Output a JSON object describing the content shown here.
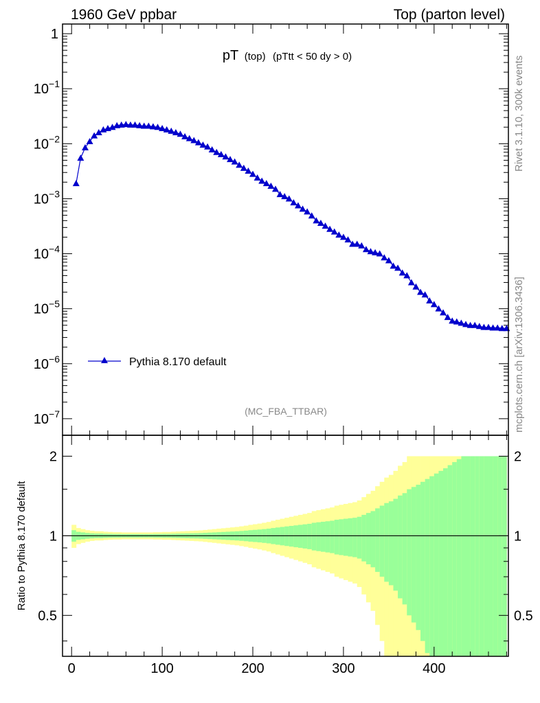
{
  "header": {
    "left": "1960 GeV ppbar",
    "right": "Top (parton level)"
  },
  "side_labels": {
    "rivet": "Rivet 3.1.10,  300k events",
    "mcplots": "mcplots.cern.ch [arXiv:1306.3436]"
  },
  "chart_data": [
    {
      "type": "line",
      "title_main": "pT",
      "title_sub": "(top)",
      "title_cut": "(pTtt < 50 dy > 0)",
      "watermark": "(MC_FBA_TTBAR)",
      "y_scale": "log",
      "ylim": [
        5e-08,
        1.5
      ],
      "xlim": [
        -10,
        482
      ],
      "y_ticks": [
        {
          "v": 1,
          "base": "1",
          "exp": ""
        },
        {
          "v": 0.1,
          "base": "10",
          "exp": "−1"
        },
        {
          "v": 0.01,
          "base": "10",
          "exp": "−2"
        },
        {
          "v": 0.001,
          "base": "10",
          "exp": "−3"
        },
        {
          "v": 0.0001,
          "base": "10",
          "exp": "−4"
        },
        {
          "v": 1e-05,
          "base": "10",
          "exp": "−5"
        },
        {
          "v": 1e-06,
          "base": "10",
          "exp": "−6"
        },
        {
          "v": 1e-07,
          "base": "10",
          "exp": "−7"
        }
      ],
      "legend": "Pythia 8.170 default",
      "legend_position": "lower-left",
      "color": "#0000cc",
      "series": [
        {
          "name": "Pythia 8.170 default",
          "x": [
            5,
            10,
            15,
            20,
            25,
            30,
            35,
            40,
            45,
            50,
            55,
            60,
            65,
            70,
            75,
            80,
            85,
            90,
            95,
            100,
            105,
            110,
            115,
            120,
            125,
            130,
            135,
            140,
            145,
            150,
            155,
            160,
            165,
            170,
            175,
            180,
            185,
            190,
            195,
            200,
            205,
            210,
            215,
            220,
            225,
            230,
            235,
            240,
            245,
            250,
            255,
            260,
            265,
            270,
            275,
            280,
            285,
            290,
            295,
            300,
            305,
            310,
            315,
            320,
            325,
            330,
            335,
            340,
            345,
            350,
            355,
            360,
            365,
            370,
            375,
            380,
            385,
            390,
            395,
            400,
            405,
            410,
            415,
            420,
            425,
            430,
            435,
            440,
            445,
            450,
            455,
            460,
            465,
            470,
            475,
            480
          ],
          "y": [
            0.0019,
            0.0055,
            0.0085,
            0.011,
            0.014,
            0.016,
            0.018,
            0.019,
            0.02,
            0.0215,
            0.022,
            0.0225,
            0.022,
            0.022,
            0.0215,
            0.021,
            0.021,
            0.0205,
            0.02,
            0.019,
            0.018,
            0.017,
            0.016,
            0.015,
            0.0135,
            0.0125,
            0.0115,
            0.0105,
            0.0095,
            0.0088,
            0.0078,
            0.007,
            0.0064,
            0.0058,
            0.0052,
            0.0047,
            0.0041,
            0.0036,
            0.0032,
            0.0028,
            0.0024,
            0.0021,
            0.0019,
            0.0017,
            0.0015,
            0.0012,
            0.0011,
            0.001,
            0.00085,
            0.00075,
            0.00065,
            0.00058,
            0.00049,
            0.0004,
            0.00036,
            0.00032,
            0.00028,
            0.00025,
            0.00022,
            0.0002,
            0.00018,
            0.00015,
            0.00015,
            0.00014,
            0.00012,
            0.00011,
            0.000105,
            0.0001,
            8.5e-05,
            7.5e-05,
            6e-05,
            5.5e-05,
            4.5e-05,
            4e-05,
            3e-05,
            2.5e-05,
            2e-05,
            1.8e-05,
            1.4e-05,
            1.2e-05,
            1e-05,
            8.5e-06,
            7e-06,
            6e-06,
            5.8e-06,
            5.5e-06,
            5.2e-06,
            5e-06,
            5e-06,
            4.8e-06,
            4.6e-06,
            4.6e-06,
            4.5e-06,
            4.5e-06,
            4.4e-06,
            4.4e-06
          ],
          "yerr_frac": [
            0.002,
            0.004,
            0.004,
            0.004,
            0.004,
            0.004,
            0.004,
            0.004,
            0.004,
            0.004,
            0.004,
            0.004,
            0.004,
            0.004,
            0.004,
            0.004,
            0.004,
            0.004,
            0.004,
            0.004,
            0.004,
            0.004,
            0.004,
            0.004,
            0.004,
            0.004,
            0.004,
            0.004,
            0.004,
            0.004,
            0.004,
            0.004,
            0.004,
            0.004,
            0.004,
            0.004,
            0.004,
            0.004,
            0.004,
            0.004,
            0.004,
            0.004,
            0.004,
            0.004,
            0.004,
            0.004,
            0.004,
            0.004,
            0.004,
            0.004,
            0.004,
            0.004,
            0.004,
            0.004,
            0.004,
            0.004,
            0.004,
            0.004,
            0.004,
            0.004,
            0.004,
            0.004,
            0.004,
            0.004,
            0.004,
            0.004,
            0.004,
            0.004,
            0.004,
            0.004,
            0.004,
            0.004,
            0.004,
            0.004,
            0.004,
            0.004,
            0.004,
            0.004,
            0.004,
            0.004,
            0.004,
            0.004,
            0.004,
            0.004,
            0.004,
            0.004,
            0.004,
            0.004,
            0.004,
            0.004,
            0.004,
            0.004,
            0.004,
            0.004,
            0.004,
            0.004
          ]
        }
      ]
    },
    {
      "type": "area",
      "ylabel": "Ratio to Pythia 8.170 default",
      "y_scale": "log",
      "ylim": [
        0.35,
        2.4
      ],
      "xlim": [
        -10,
        482
      ],
      "y_ticks": [
        0.5,
        1,
        2
      ],
      "x_ticks": [
        0,
        100,
        200,
        300,
        400
      ],
      "reference_line": 1,
      "band_colors": {
        "inner": "#99ff99",
        "outer": "#ffff99"
      },
      "bins": [
        0,
        5,
        10,
        15,
        20,
        25,
        30,
        35,
        40,
        45,
        50,
        55,
        60,
        65,
        70,
        75,
        80,
        85,
        90,
        95,
        100,
        105,
        110,
        115,
        120,
        125,
        130,
        135,
        140,
        145,
        150,
        155,
        160,
        165,
        170,
        175,
        180,
        185,
        190,
        195,
        200,
        205,
        210,
        215,
        220,
        225,
        230,
        235,
        240,
        245,
        250,
        255,
        260,
        265,
        270,
        275,
        280,
        285,
        290,
        295,
        300,
        305,
        310,
        315,
        320,
        325,
        330,
        335,
        340,
        345,
        350,
        355,
        360,
        365,
        370,
        375,
        380,
        385,
        390,
        395,
        400,
        405,
        410,
        415,
        420,
        425,
        430,
        435,
        440,
        445,
        450,
        455,
        460,
        465,
        470,
        475,
        480
      ],
      "inner_half_width": [
        0.05,
        0.035,
        0.03,
        0.025,
        0.022,
        0.02,
        0.02,
        0.018,
        0.017,
        0.016,
        0.016,
        0.015,
        0.015,
        0.015,
        0.015,
        0.015,
        0.015,
        0.015,
        0.016,
        0.016,
        0.017,
        0.017,
        0.018,
        0.019,
        0.02,
        0.021,
        0.022,
        0.023,
        0.024,
        0.026,
        0.028,
        0.03,
        0.032,
        0.034,
        0.036,
        0.038,
        0.04,
        0.043,
        0.046,
        0.05,
        0.053,
        0.056,
        0.06,
        0.064,
        0.07,
        0.075,
        0.08,
        0.085,
        0.09,
        0.095,
        0.1,
        0.105,
        0.11,
        0.12,
        0.125,
        0.13,
        0.135,
        0.14,
        0.15,
        0.155,
        0.16,
        0.165,
        0.17,
        0.18,
        0.2,
        0.22,
        0.24,
        0.27,
        0.3,
        0.33,
        0.35,
        0.38,
        0.42,
        0.45,
        0.5,
        0.53,
        0.56,
        0.6,
        0.64,
        0.68,
        0.72,
        0.76,
        0.8,
        0.85,
        0.9,
        0.95,
        1,
        1,
        1,
        1,
        1,
        1,
        1,
        1,
        1,
        1
      ],
      "outer_half_width": [
        0.1,
        0.07,
        0.06,
        0.05,
        0.044,
        0.04,
        0.04,
        0.036,
        0.034,
        0.032,
        0.032,
        0.03,
        0.03,
        0.03,
        0.03,
        0.03,
        0.03,
        0.03,
        0.032,
        0.032,
        0.034,
        0.034,
        0.036,
        0.038,
        0.04,
        0.042,
        0.044,
        0.046,
        0.048,
        0.052,
        0.056,
        0.06,
        0.064,
        0.068,
        0.072,
        0.076,
        0.08,
        0.086,
        0.092,
        0.1,
        0.106,
        0.112,
        0.12,
        0.128,
        0.14,
        0.15,
        0.16,
        0.17,
        0.18,
        0.19,
        0.2,
        0.21,
        0.22,
        0.24,
        0.25,
        0.26,
        0.27,
        0.28,
        0.3,
        0.31,
        0.32,
        0.33,
        0.34,
        0.36,
        0.4,
        0.44,
        0.48,
        0.54,
        0.6,
        0.66,
        0.7,
        0.76,
        0.84,
        0.9,
        1,
        1,
        1,
        1,
        1,
        1,
        1,
        1,
        1,
        1,
        1,
        1,
        1,
        1,
        1,
        1,
        1,
        1,
        1,
        1,
        1,
        1
      ]
    }
  ]
}
